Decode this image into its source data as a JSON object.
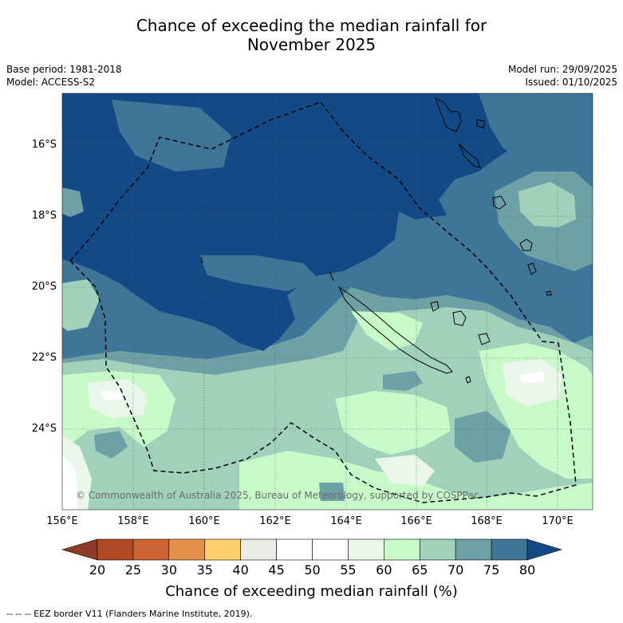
{
  "title": {
    "line1": "Chance of exceeding the median rainfall for",
    "line2": "November 2025"
  },
  "meta": {
    "base_period": "Base period: 1981-2018",
    "model": "Model: ACCESS-S2",
    "model_run": "Model run: 29/09/2025",
    "issued": "Issued: 01/10/2025"
  },
  "map": {
    "lat_labels": [
      "16°S",
      "18°S",
      "20°S",
      "22°S",
      "24°S"
    ],
    "lon_labels": [
      "156°E",
      "158°E",
      "160°E",
      "162°E",
      "164°E",
      "166°E",
      "168°E",
      "170°E"
    ],
    "copyright": "© Commonwealth of Australia 2025, Bureau of Meteorology, supported by COSPPac",
    "colors": {
      "c75_80": "#134a86",
      "c70_75": "#3f7597",
      "c65_70": "#6ea1a6",
      "c60_65": "#9fd1bb",
      "c55_60": "#c8fac9",
      "c50_55": "#eaf6ea",
      "c45_50": "#ffffff"
    }
  },
  "colorbar": {
    "ticks": [
      "20",
      "25",
      "30",
      "35",
      "40",
      "45",
      "50",
      "55",
      "60",
      "65",
      "70",
      "75",
      "80"
    ],
    "colors": [
      "#b04a24",
      "#ca6331",
      "#e4924b",
      "#ffd06c",
      "#ebebe6",
      "#ffffff",
      "#ffffff",
      "#eaf6ea",
      "#c8fac9",
      "#9fd1bb",
      "#6ea1a6",
      "#3f7597"
    ],
    "under_color": "#8f3a25",
    "over_color": "#134a86",
    "label": "Chance of exceeding median rainfall (%)"
  },
  "footnote": "--  --  -- EEZ border V11 (Flanders Marine Institute, 2019)."
}
